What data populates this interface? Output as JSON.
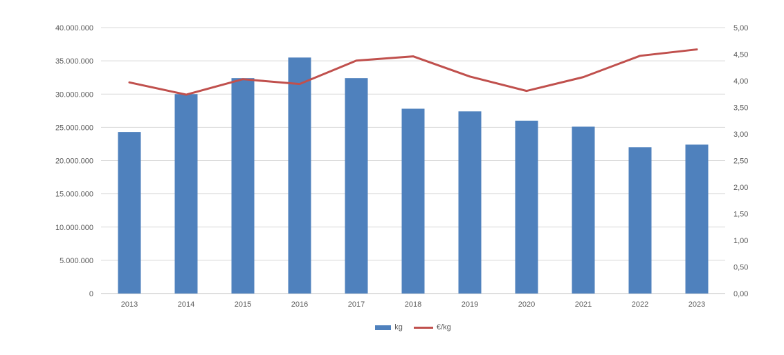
{
  "chart_data": {
    "type": "combo",
    "title": "",
    "categories": [
      "2013",
      "2014",
      "2015",
      "2016",
      "2017",
      "2018",
      "2019",
      "2020",
      "2021",
      "2022",
      "2023"
    ],
    "series": [
      {
        "name": "kg",
        "type": "bar",
        "axis": "left",
        "color": "#4F81BD",
        "values": [
          24300000,
          30000000,
          32400000,
          35500000,
          32400000,
          27800000,
          27400000,
          26000000,
          25100000,
          22000000,
          22400000
        ]
      },
      {
        "name": "€/kg",
        "type": "line",
        "axis": "right",
        "color": "#C0504D",
        "values": [
          3.97,
          3.74,
          4.03,
          3.94,
          4.38,
          4.46,
          4.08,
          3.81,
          4.07,
          4.47,
          4.59
        ]
      }
    ],
    "left_axis": {
      "min": 0,
      "max": 40000000,
      "tick_step": 5000000,
      "tick_labels": [
        "0",
        "5.000.000",
        "10.000.000",
        "15.000.000",
        "20.000.000",
        "25.000.000",
        "30.000.000",
        "35.000.000",
        "40.000.000"
      ]
    },
    "right_axis": {
      "min": 0,
      "max": 5,
      "tick_step": 0.5,
      "tick_labels": [
        "0,00",
        "0,50",
        "1,00",
        "1,50",
        "2,00",
        "2,50",
        "3,00",
        "3,50",
        "4,00",
        "4,50",
        "5,00"
      ]
    },
    "grid": true,
    "legend_position": "bottom",
    "colors": {
      "gridline": "#D9D9D9",
      "axis_line": "#BFBFBF",
      "tick_text": "#595959"
    }
  }
}
